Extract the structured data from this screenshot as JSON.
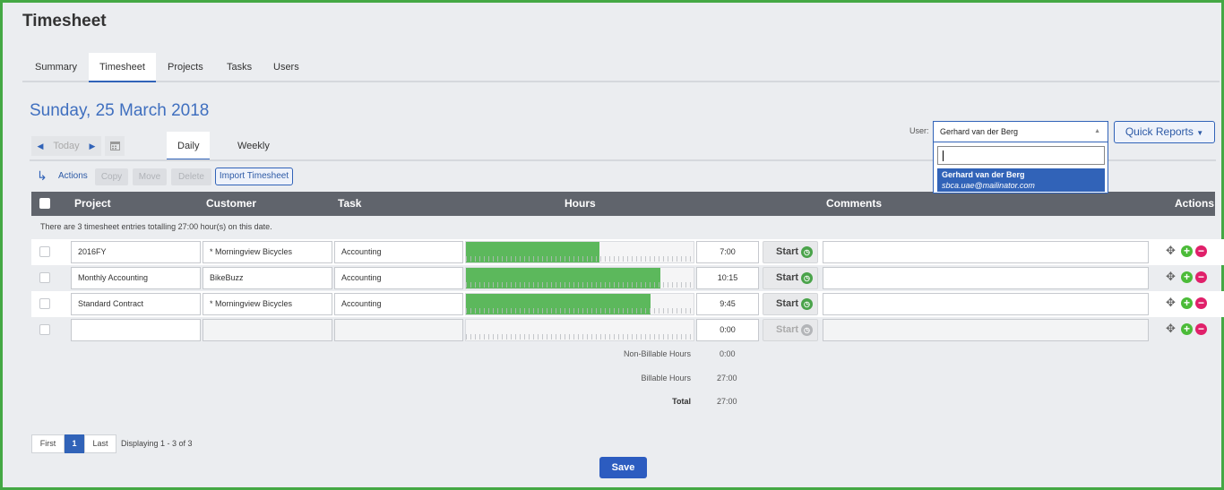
{
  "app": {
    "title": "Timesheet"
  },
  "tabs": [
    "Summary",
    "Timesheet",
    "Projects",
    "Tasks",
    "Users"
  ],
  "active_tab": "Timesheet",
  "date_title": "Sunday, 25 March 2018",
  "nav": {
    "today_label": "Today"
  },
  "view_tabs": [
    "Daily",
    "Weekly"
  ],
  "active_view": "Daily",
  "actions_bar": {
    "actions_label": "Actions",
    "copy_label": "Copy",
    "move_label": "Move",
    "delete_label": "Delete",
    "import_label": "Import Timesheet"
  },
  "user_filter": {
    "label": "User:",
    "selected": "Gerhard van der Berg",
    "search_value": "",
    "options": [
      {
        "name": "Gerhard van der Berg",
        "email": "sbca.uae@mailinator.com"
      }
    ]
  },
  "quick_reports_label": "Quick Reports",
  "table": {
    "headers": [
      "Project",
      "Customer",
      "Task",
      "Hours",
      "Comments",
      "Actions"
    ],
    "summary_text": "There are 3 timesheet entries totalling 27:00 hour(s) on this date.",
    "start_label": "Start",
    "rows": [
      {
        "project": "2016FY",
        "customer": "* Morningview Bicycles",
        "task": "Accounting",
        "hours": "7:00",
        "hours_fraction": 0.585,
        "comment": ""
      },
      {
        "project": "Monthly Accounting",
        "customer": "BikeBuzz",
        "task": "Accounting",
        "hours": "10:15",
        "hours_fraction": 0.855,
        "comment": ""
      },
      {
        "project": "Standard Contract",
        "customer": "* Morningview Bicycles",
        "task": "Accounting",
        "hours": "9:45",
        "hours_fraction": 0.81,
        "comment": ""
      },
      {
        "project": "",
        "customer": "",
        "task": "",
        "hours": "0:00",
        "hours_fraction": 0,
        "comment": ""
      }
    ]
  },
  "totals": {
    "non_billable_label": "Non-Billable Hours",
    "non_billable": "0:00",
    "billable_label": "Billable Hours",
    "billable": "27:00",
    "total_label": "Total",
    "total": "27:00"
  },
  "pagination": {
    "first": "First",
    "page": "1",
    "last": "Last",
    "info": "Displaying 1 - 3 of 3"
  },
  "save_label": "Save",
  "colors": {
    "accent": "#3163b8",
    "progress": "#5cb85c",
    "header_bg": "#60646c",
    "add": "#4bbb38",
    "remove": "#e0206a"
  }
}
